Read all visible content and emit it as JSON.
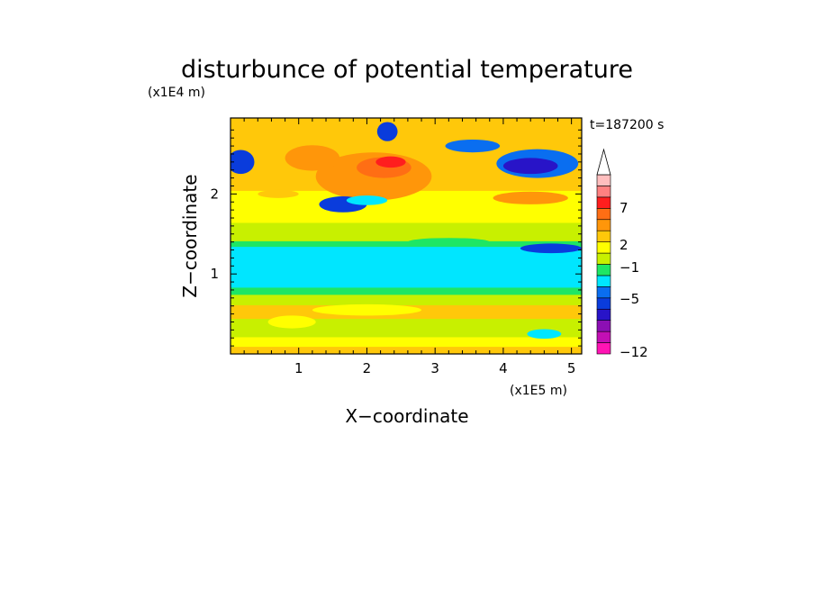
{
  "chart_data": {
    "type": "heatmap",
    "title": "disturbunce of potential temperature",
    "y_scale_label": "(x1E4 m)",
    "x_scale_label": "(x1E5 m)",
    "xlabel": "X−coordinate",
    "ylabel": "Z−coordinate",
    "time_label": "t=187200 s",
    "xlim": [
      0,
      5.15
    ],
    "ylim": [
      0,
      2.95
    ],
    "x_ticks": [
      "1",
      "2",
      "3",
      "4",
      "5"
    ],
    "y_ticks": [
      "1",
      "2"
    ],
    "colorbar": {
      "labels": [
        "7",
        "2",
        "−1",
        "−5",
        "−12"
      ],
      "colors": [
        "#ff14b4",
        "#c30fb4",
        "#8c0fb4",
        "#2814c8",
        "#0a3cdc",
        "#0a6ef0",
        "#00e6ff",
        "#1ee664",
        "#c8f000",
        "#ffff00",
        "#ffc80a",
        "#ff960a",
        "#ff6e14",
        "#ff1e1e",
        "#ff8080",
        "#ffbebe"
      ]
    },
    "bands": [
      {
        "z": [
          0.0,
          0.1
        ],
        "color": "#ffc80a"
      },
      {
        "z": [
          0.1,
          0.22
        ],
        "color": "#ffff00"
      },
      {
        "z": [
          0.22,
          0.45
        ],
        "color": "#c8f000"
      },
      {
        "z": [
          0.45,
          0.62
        ],
        "color": "#ffc80a"
      },
      {
        "z": [
          0.62,
          0.75
        ],
        "color": "#c8f000"
      },
      {
        "z": [
          0.75,
          0.84
        ],
        "color": "#1ee664"
      },
      {
        "z": [
          0.84,
          1.35
        ],
        "color": "#00e6ff"
      },
      {
        "z": [
          1.35,
          1.42
        ],
        "color": "#1ee664"
      },
      {
        "z": [
          1.42,
          1.65
        ],
        "color": "#c8f000"
      },
      {
        "z": [
          1.65,
          2.05
        ],
        "color": "#ffff00"
      },
      {
        "z": [
          2.05,
          2.95
        ],
        "color": "#ffc80a"
      }
    ],
    "features": [
      {
        "x": 2.1,
        "z": 2.22,
        "rx": 0.85,
        "rz": 0.3,
        "color": "#ff960a"
      },
      {
        "x": 1.2,
        "z": 2.45,
        "rx": 0.4,
        "rz": 0.16,
        "color": "#ff960a"
      },
      {
        "x": 2.25,
        "z": 2.33,
        "rx": 0.4,
        "rz": 0.13,
        "color": "#ff6e14"
      },
      {
        "x": 2.35,
        "z": 2.4,
        "rx": 0.22,
        "rz": 0.07,
        "color": "#ff1e1e"
      },
      {
        "x": 0.15,
        "z": 2.4,
        "rx": 0.2,
        "rz": 0.15,
        "color": "#0a3cdc"
      },
      {
        "x": 4.5,
        "z": 2.38,
        "rx": 0.6,
        "rz": 0.18,
        "color": "#0a6ef0"
      },
      {
        "x": 4.4,
        "z": 2.35,
        "rx": 0.4,
        "rz": 0.1,
        "color": "#2814c8"
      },
      {
        "x": 3.55,
        "z": 2.6,
        "rx": 0.4,
        "rz": 0.08,
        "color": "#0a6ef0"
      },
      {
        "x": 2.3,
        "z": 2.78,
        "rx": 0.15,
        "rz": 0.12,
        "color": "#0a3cdc"
      },
      {
        "x": 1.65,
        "z": 1.87,
        "rx": 0.35,
        "rz": 0.1,
        "color": "#0a3cdc"
      },
      {
        "x": 2.0,
        "z": 1.92,
        "rx": 0.3,
        "rz": 0.06,
        "color": "#00e6ff"
      },
      {
        "x": 4.7,
        "z": 1.32,
        "rx": 0.45,
        "rz": 0.06,
        "color": "#0a3cdc"
      },
      {
        "x": 3.2,
        "z": 1.4,
        "rx": 0.6,
        "rz": 0.05,
        "color": "#1ee664"
      },
      {
        "x": 0.7,
        "z": 2.0,
        "rx": 0.3,
        "rz": 0.05,
        "color": "#ffc80a"
      },
      {
        "x": 4.4,
        "z": 1.95,
        "rx": 0.55,
        "rz": 0.08,
        "color": "#ff960a"
      },
      {
        "x": 0.9,
        "z": 0.4,
        "rx": 0.35,
        "rz": 0.08,
        "color": "#ffff00"
      },
      {
        "x": 2.0,
        "z": 0.55,
        "rx": 0.8,
        "rz": 0.07,
        "color": "#ffff00"
      },
      {
        "x": 4.6,
        "z": 0.25,
        "rx": 0.25,
        "rz": 0.06,
        "color": "#00e6ff"
      }
    ]
  }
}
